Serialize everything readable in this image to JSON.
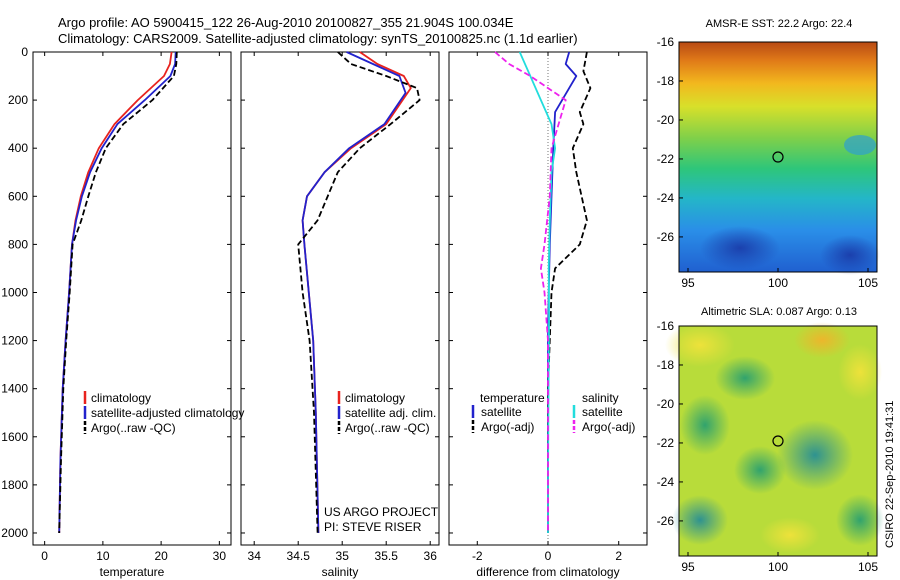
{
  "header": {
    "line1": "Argo profile: AO 5900415_122 26-Aug-2010 20100827_355 21.904S 100.034E",
    "line2": "Climatology: CARS2009. Satellite-adjusted climatology: synTS_20100825.nc (1.1d earlier)"
  },
  "side_label": "CSIRO 22-Sep-2010 19:41:31",
  "colors": {
    "climatology": "#e8231e",
    "satellite": "#2222cc",
    "argo": "#000000",
    "sal_satellite": "#22dddd",
    "sal_argo": "#ee22ee"
  },
  "chart_data": [
    {
      "id": "temperature",
      "type": "line",
      "xlabel": "temperature",
      "ylabel": "",
      "xlim": [
        -2,
        32
      ],
      "ylim": [
        2050,
        0
      ],
      "xticks": [
        0,
        10,
        20,
        30
      ],
      "yticks": [
        0,
        200,
        400,
        600,
        800,
        1000,
        1200,
        1400,
        1600,
        1800,
        2000
      ],
      "legend": [
        "climatology",
        "satellite-adjusted climatology",
        "Argo(..raw -QC)"
      ],
      "series": [
        {
          "name": "climatology",
          "color": "#e8231e",
          "dash": "",
          "x": [
            21.8,
            21.5,
            20.5,
            16,
            12,
            9.3,
            7.5,
            6.2,
            5.3,
            4.7,
            4.2,
            3.6,
            3.1,
            2.7,
            2.5
          ],
          "y": [
            0,
            50,
            100,
            200,
            300,
            400,
            500,
            600,
            700,
            800,
            1000,
            1200,
            1400,
            1700,
            2000
          ]
        },
        {
          "name": "satellite-adjusted climatology",
          "color": "#2222cc",
          "dash": "",
          "x": [
            22.5,
            22.4,
            21.6,
            17.2,
            12.5,
            9.8,
            7.8,
            6.4,
            5.4,
            4.7,
            4.2,
            3.6,
            3.1,
            2.7,
            2.5
          ],
          "y": [
            0,
            50,
            100,
            200,
            300,
            400,
            500,
            600,
            700,
            800,
            1000,
            1200,
            1400,
            1700,
            2000
          ]
        },
        {
          "name": "Argo(..raw -QC)",
          "color": "#000000",
          "dash": "6,3",
          "x": [
            22.7,
            22.6,
            22.2,
            18.5,
            13.5,
            10.5,
            8.8,
            7.5,
            6.3,
            4.8,
            4.3,
            3.7,
            3.2,
            2.8,
            2.5
          ],
          "y": [
            0,
            50,
            100,
            200,
            300,
            400,
            500,
            600,
            700,
            800,
            1000,
            1200,
            1400,
            1700,
            2000
          ]
        }
      ]
    },
    {
      "id": "salinity",
      "type": "line",
      "xlabel": "salinity",
      "ylabel": "",
      "xlim": [
        33.85,
        36.1
      ],
      "ylim": [
        2050,
        0
      ],
      "xticks": [
        34,
        34.5,
        35,
        35.5,
        36
      ],
      "legend": [
        "climatology",
        "satellite adj. clim.",
        "Argo(..raw -QC)"
      ],
      "series": [
        {
          "name": "climatology",
          "color": "#e8231e",
          "dash": "",
          "x": [
            35.2,
            35.4,
            35.7,
            35.78,
            35.5,
            35.1,
            34.8,
            34.6,
            34.55,
            34.57,
            34.62,
            34.67,
            34.7,
            34.73
          ],
          "y": [
            0,
            50,
            100,
            150,
            300,
            400,
            500,
            600,
            700,
            800,
            1000,
            1200,
            1500,
            2000
          ]
        },
        {
          "name": "satellite adj. clim.",
          "color": "#2222cc",
          "dash": "",
          "x": [
            35.05,
            35.35,
            35.65,
            35.72,
            35.48,
            35.08,
            34.8,
            34.6,
            34.55,
            34.57,
            34.62,
            34.67,
            34.7,
            34.73
          ],
          "y": [
            0,
            50,
            100,
            170,
            300,
            400,
            500,
            600,
            700,
            800,
            1000,
            1200,
            1500,
            2000
          ]
        },
        {
          "name": "Argo(..raw -QC)",
          "color": "#000000",
          "dash": "6,3",
          "x": [
            34.95,
            35.1,
            35.5,
            35.85,
            35.88,
            35.55,
            35.2,
            34.95,
            34.72,
            34.5,
            34.55,
            34.63,
            34.68,
            34.72
          ],
          "y": [
            0,
            50,
            100,
            150,
            200,
            300,
            400,
            500,
            700,
            800,
            1000,
            1200,
            1500,
            2000
          ]
        }
      ],
      "annotations": [
        "US ARGO PROJECT",
        "PI: STEVE RISER"
      ]
    },
    {
      "id": "difference",
      "type": "line",
      "xlabel": "difference from climatology",
      "ylabel": "",
      "xlim": [
        -2.8,
        2.8
      ],
      "ylim": [
        2050,
        0
      ],
      "xticks": [
        -2,
        0,
        2
      ],
      "legend": [
        "temperature",
        "satellite",
        "Argo(-adj)",
        "salinity",
        "satellite",
        "Argo(-adj)"
      ],
      "series": [
        {
          "name": "temperature satellite",
          "color": "#2222cc",
          "dash": "",
          "x": [
            0.6,
            0.5,
            0.8,
            0.6,
            0.2,
            0.15,
            0.1,
            0.05,
            0.02,
            0,
            0,
            0,
            0
          ],
          "y": [
            0,
            50,
            100,
            150,
            250,
            400,
            600,
            800,
            1000,
            1200,
            1500,
            1800,
            2000
          ]
        },
        {
          "name": "temperature Argo(-adj)",
          "color": "#000000",
          "dash": "6,3",
          "x": [
            1.1,
            1.0,
            1.2,
            0.9,
            1.0,
            0.7,
            0.8,
            1.1,
            0.9,
            0.2,
            0.1,
            0,
            0,
            0
          ],
          "y": [
            0,
            80,
            150,
            250,
            300,
            400,
            500,
            700,
            800,
            900,
            1000,
            1400,
            1800,
            2000
          ]
        },
        {
          "name": "salinity satellite",
          "color": "#22dddd",
          "dash": "",
          "x": [
            -0.8,
            -0.5,
            -0.2,
            0.1,
            0.2,
            0.1,
            0.05,
            0.02,
            0.03,
            0.02,
            0.01,
            0,
            0
          ],
          "y": [
            0,
            100,
            200,
            300,
            400,
            500,
            700,
            900,
            1100,
            1300,
            1500,
            1800,
            2000
          ]
        },
        {
          "name": "salinity Argo(-adj)",
          "color": "#ee22ee",
          "dash": "6,3",
          "x": [
            -1.5,
            -1.1,
            -0.5,
            0.5,
            0.3,
            0.1,
            0.05,
            -0.1,
            -0.2,
            -0.1,
            0,
            0,
            0
          ],
          "y": [
            0,
            50,
            100,
            200,
            300,
            400,
            600,
            800,
            900,
            1000,
            1200,
            1600,
            2000
          ]
        }
      ]
    },
    {
      "id": "sst_map",
      "type": "heatmap",
      "title": "AMSR-E SST: 22.2  Argo: 22.4",
      "xlim": [
        94.5,
        105.5
      ],
      "ylim": [
        -27.8,
        -16
      ],
      "xticks": [
        95,
        100,
        105
      ],
      "yticks": [
        -16,
        -18,
        -20,
        -22,
        -24,
        -26
      ],
      "marker": [
        100.0,
        -21.9
      ]
    },
    {
      "id": "sla_map",
      "type": "heatmap",
      "title": "Altimetric SLA: 0.087  Argo: 0.13",
      "xlim": [
        94.5,
        105.5
      ],
      "ylim": [
        -27.8,
        -16
      ],
      "xticks": [
        95,
        100,
        105
      ],
      "yticks": [
        -16,
        -18,
        -20,
        -22,
        -24,
        -26
      ],
      "marker": [
        100.0,
        -21.9
      ]
    }
  ]
}
